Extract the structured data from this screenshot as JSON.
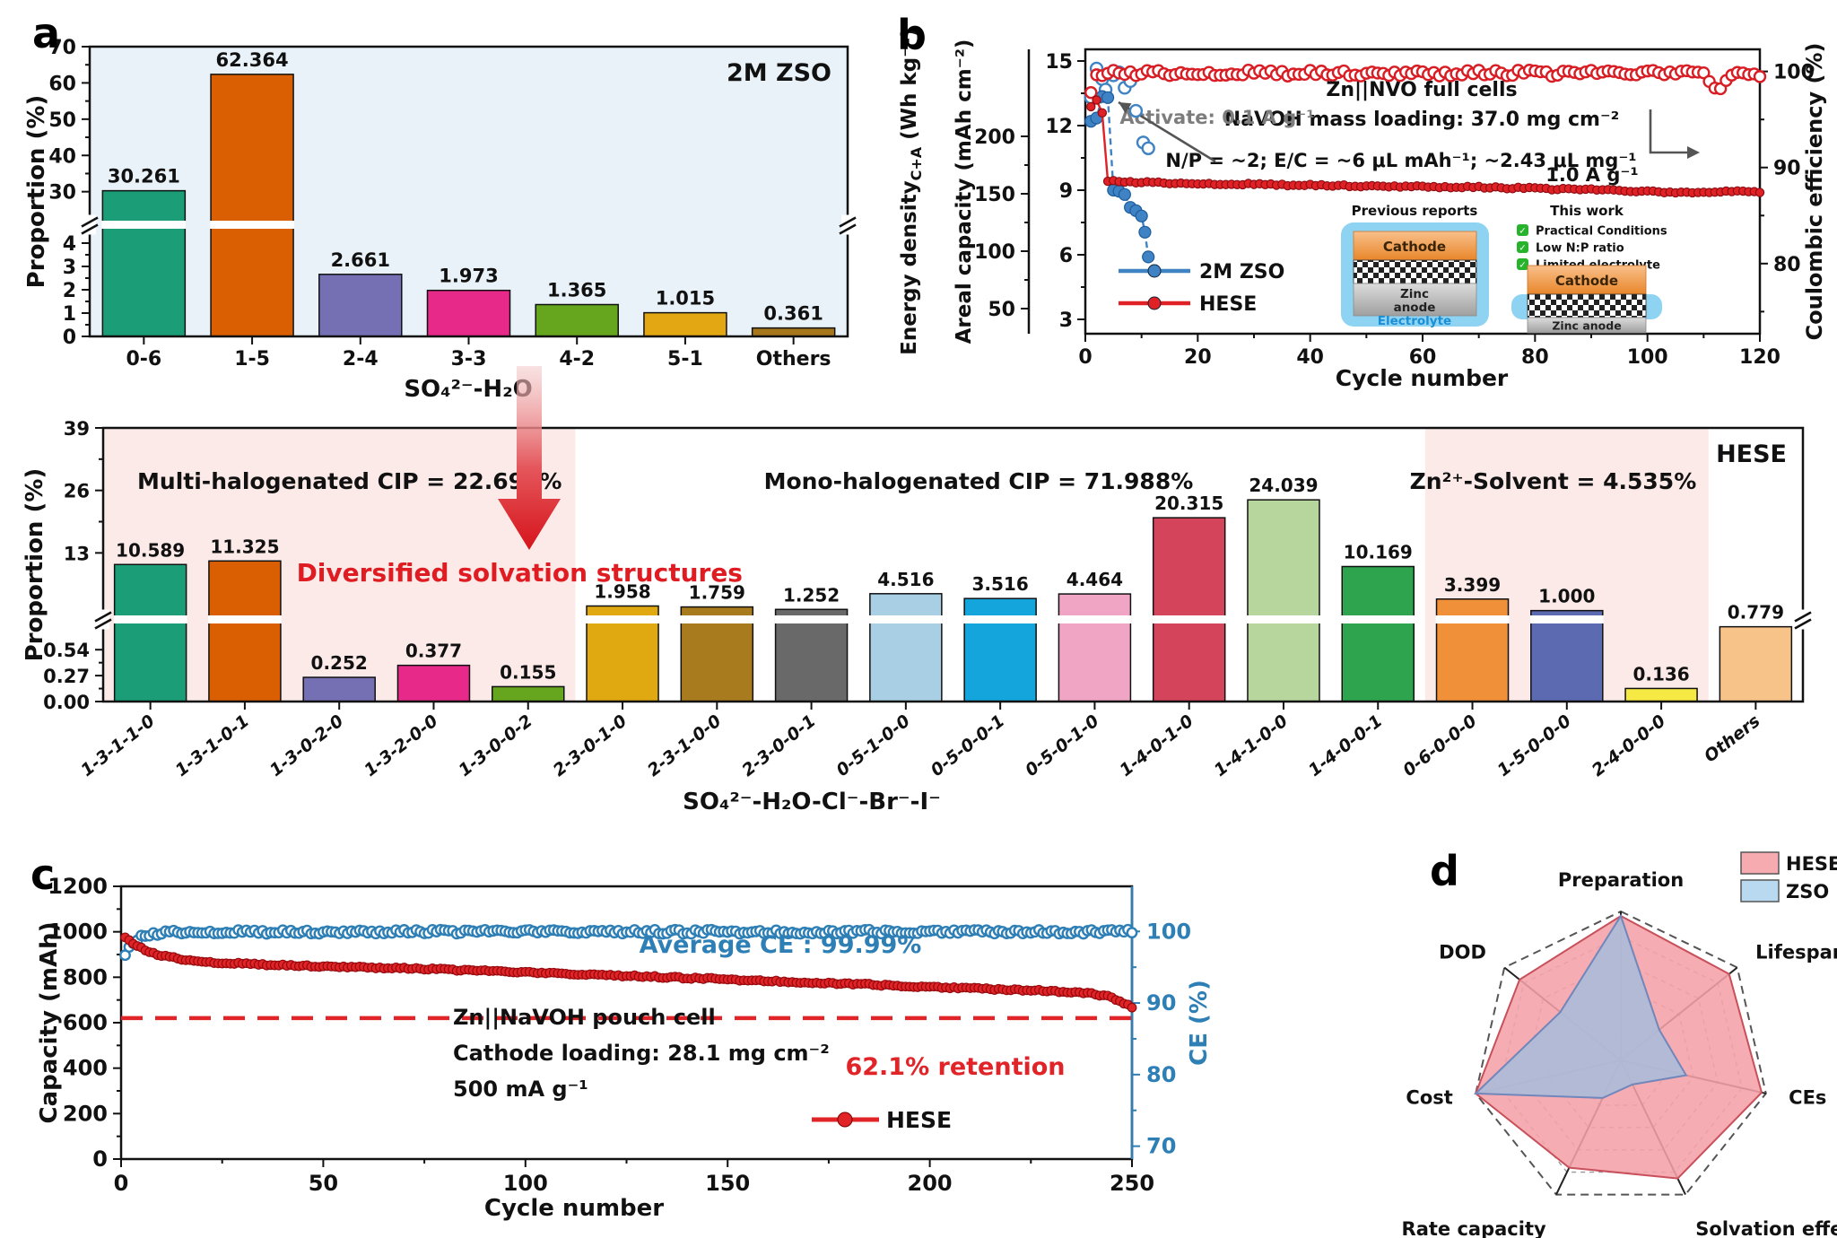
{
  "panel_letters": {
    "a": "a",
    "b": "b",
    "c": "c",
    "d": "d"
  },
  "chart_data": [
    {
      "id": "a",
      "type": "bar",
      "corner_label": "2M ZSO",
      "xlabel": "SO₄²⁻-H₂O",
      "ylabel": "Proportion (%)",
      "plot_bg": "#e8f2f8",
      "categories": [
        "0-6",
        "1-5",
        "2-4",
        "3-3",
        "4-2",
        "5-1",
        "Others"
      ],
      "values": [
        30.261,
        62.364,
        2.661,
        1.973,
        1.365,
        1.015,
        0.361
      ],
      "value_labels": [
        "30.261",
        "62.364",
        "2.661",
        "1.973",
        "1.365",
        "1.015",
        "0.361"
      ],
      "bar_colors": [
        "#1b9e77",
        "#d95f02",
        "#7570b3",
        "#e7298a",
        "#66a61e",
        "#e2a713",
        "#a6761d"
      ],
      "axis": {
        "upper_ticks": [
          30,
          40,
          50,
          60,
          70
        ],
        "upper_range": [
          22,
          70
        ],
        "lower_ticks": [
          0,
          1,
          2,
          3,
          4
        ],
        "broken": true
      }
    },
    {
      "id": "hese",
      "type": "bar",
      "corner_label": "HESE",
      "xlabel": "SO₄²⁻-H₂O-Cl⁻-Br⁻-I⁻",
      "ylabel": "Proportion (%)",
      "plot_bg": "#ffffff",
      "region_color": "#fbeae8",
      "categories": [
        "1-3-1-1-0",
        "1-3-1-0-1",
        "1-3-0-2-0",
        "1-3-2-0-0",
        "1-3-0-0-2",
        "2-3-0-1-0",
        "2-3-1-0-0",
        "2-3-0-0-1",
        "0-5-1-0-0",
        "0-5-0-0-1",
        "0-5-0-1-0",
        "1-4-0-1-0",
        "1-4-1-0-0",
        "1-4-0-0-1",
        "0-6-0-0-0",
        "1-5-0-0-0",
        "2-4-0-0-0",
        "Others"
      ],
      "values": [
        10.589,
        11.325,
        0.252,
        0.377,
        0.155,
        1.958,
        1.759,
        1.252,
        4.516,
        3.516,
        4.464,
        20.315,
        24.039,
        10.169,
        3.399,
        1.0,
        0.136,
        0.779
      ],
      "value_labels": [
        "10.589",
        "11.325",
        "0.252",
        "0.377",
        "0.155",
        "1.958",
        "1.759",
        "1.252",
        "4.516",
        "3.516",
        "4.464",
        "20.315",
        "24.039",
        "10.169",
        "3.399",
        "1.000",
        "0.136",
        "0.779"
      ],
      "bar_colors": [
        "#1b9e77",
        "#d95f02",
        "#7570b3",
        "#e7298a",
        "#66a61e",
        "#e0a912",
        "#a87b1e",
        "#696969",
        "#a9cfe4",
        "#14a5dc",
        "#efa5c3",
        "#d4445a",
        "#b6d69d",
        "#2ea44e",
        "#f0913a",
        "#5c6ab2",
        "#f6e943",
        "#f7c389"
      ],
      "regions": [
        {
          "from": 0,
          "to": 5
        },
        {
          "from": 14,
          "to": 17
        }
      ],
      "annotations": [
        {
          "text": "Multi-halogenated CIP = 22.698%",
          "color": "#111111",
          "x_fr": 0.145,
          "y": 95,
          "size": 25
        },
        {
          "text": "Mono-halogenated CIP = 71.988%",
          "color": "#111111",
          "x_fr": 0.515,
          "y": 95,
          "size": 25
        },
        {
          "text": "Zn²⁺-Solvent = 4.535%",
          "color": "#111111",
          "x_fr": 0.853,
          "y": 95,
          "size": 25
        },
        {
          "text": "Diversified solvation structures",
          "color": "#e01c23",
          "x_fr": 0.245,
          "y": 198,
          "size": 28
        }
      ],
      "axis": {
        "upper_ticks": [
          13,
          26,
          39
        ],
        "upper_range": [
          0,
          39
        ],
        "lower_ticks": [
          0,
          0.27,
          0.54
        ],
        "lower_tick_labels": [
          "0.00",
          "0.27",
          "0.54"
        ],
        "broken": true
      }
    },
    {
      "id": "b",
      "type": "scatter",
      "xlabel": "Cycle number",
      "x_ticks": [
        0,
        20,
        40,
        60,
        80,
        100,
        120
      ],
      "ylabel_energy_parts": [
        "Energy density",
        "C+A",
        " (Wh kg⁻¹)"
      ],
      "ylabel_capacity": "Areal capacity (mAh cm⁻²)",
      "ylabel_ce": "Coulombic efficiency (%)",
      "energy_ticks": [
        50,
        100,
        150,
        200
      ],
      "capacity_ticks": [
        3,
        6,
        9,
        12,
        15
      ],
      "ce_ticks": [
        80,
        90,
        100
      ],
      "texts": {
        "title": "Zn||NVO full cells",
        "loading": "NaVOH mass loading: 37.0 mg cm⁻²",
        "conditions": "N/P = ~2;  E/C = ~6 μL mAh⁻¹; ~2.43 μL mg⁻¹",
        "activate": "Activate: 0.1 A g⁻¹",
        "rate": "1.0 A g⁻¹"
      },
      "legend": [
        {
          "label": "2M ZSO",
          "color": "#3f83c4"
        },
        {
          "label": "HESE",
          "color": "#e02227"
        }
      ],
      "inset": {
        "previous_title": "Previous reports",
        "previous_cathode": "Cathode",
        "previous_anode": "Zinc anode",
        "previous_electrolyte": "Electrolyte",
        "thiswork_title": "This work",
        "thiswork_checks": [
          "Practical Conditions",
          "Low N:P ratio",
          "Limited electrolyte"
        ],
        "thiswork_cathode": "Cathode",
        "thiswork_anode": "Zinc anode"
      },
      "series": [
        {
          "id": "zso-ce",
          "axis": "ce",
          "marker": "open",
          "color": "#3f83c4",
          "r": 6.5,
          "keypoints": [
            [
              1,
              97.3
            ],
            [
              2,
              100.3
            ],
            [
              3,
              99.2
            ],
            [
              3.6,
              98.1
            ],
            [
              5,
              99.6
            ],
            [
              6,
              99.9
            ],
            [
              7,
              98.3
            ],
            [
              8,
              99.0
            ],
            [
              9,
              95.9
            ],
            [
              10.3,
              92.6
            ],
            [
              11.2,
              92.0
            ]
          ]
        },
        {
          "id": "zso-capacity",
          "axis": "cap",
          "marker": "filled",
          "color": "#3f83c4",
          "edge": "#1d5c9c",
          "r": 6.5,
          "line": "dash",
          "keypoints": [
            [
              1,
              12.2
            ],
            [
              2,
              12.35
            ],
            [
              3,
              13.35
            ],
            [
              4,
              13.3
            ],
            [
              5,
              9.0
            ],
            [
              6,
              8.95
            ],
            [
              7,
              8.8
            ],
            [
              8,
              8.2
            ],
            [
              9,
              8.05
            ],
            [
              10,
              7.8
            ],
            [
              10.6,
              7.05
            ],
            [
              11.2,
              5.9
            ]
          ]
        },
        {
          "id": "hese-ce",
          "axis": "ce",
          "marker": "open",
          "color": "#d81e24",
          "r": 6.0,
          "points": 120,
          "x_start": 1,
          "x_end": 120,
          "noise": 0.33,
          "clamp_max": 100.4,
          "keypoints": [
            [
              1,
              97.6
            ],
            [
              2,
              99.4
            ],
            [
              4,
              99.85
            ],
            [
              40,
              99.85
            ],
            [
              80,
              99.8
            ],
            [
              110,
              99.8
            ],
            [
              112.5,
              98.1
            ],
            [
              115,
              99.8
            ],
            [
              120,
              99.5
            ]
          ]
        },
        {
          "id": "hese-capacity",
          "axis": "cap",
          "marker": "filled",
          "color": "#e02227",
          "edge": "#8f0d12",
          "r": 4.6,
          "line": "solid",
          "points": 120,
          "x_start": 1,
          "x_end": 120,
          "noise": 0.045,
          "keypoints": [
            [
              1,
              12.85
            ],
            [
              2,
              13.15
            ],
            [
              3,
              12.6
            ],
            [
              3.6,
              12.55
            ],
            [
              4,
              9.42
            ],
            [
              12,
              9.35
            ],
            [
              30,
              9.27
            ],
            [
              50,
              9.2
            ],
            [
              70,
              9.13
            ],
            [
              90,
              9.02
            ],
            [
              100,
              8.93
            ],
            [
              108,
              8.86
            ],
            [
              114,
              8.97
            ],
            [
              120,
              8.9
            ]
          ]
        }
      ]
    },
    {
      "id": "c",
      "type": "scatter",
      "xlabel": "Cycle number",
      "x_ticks": [
        0,
        50,
        100,
        150,
        200,
        250
      ],
      "ylabel": "Capacity (mAh)",
      "ylabel_ce": "CE (%)",
      "y_ticks": [
        0,
        200,
        400,
        600,
        800,
        1000,
        1200
      ],
      "ce_ticks": [
        70,
        80,
        90,
        100
      ],
      "texts": {
        "cell": "Zn||NaVOH pouch cell",
        "loading": "Cathode loading: 28.1 mg cm⁻²",
        "rate": "500 mA g⁻¹",
        "avg_ce": "Average CE : 99.99%",
        "retention": "62.1% retention"
      },
      "legend": [
        {
          "label": "HESE",
          "color": "#e02428"
        }
      ],
      "retention_line": {
        "value": 620,
        "color": "#e02428"
      },
      "series": [
        {
          "id": "ce",
          "axis": "ce",
          "marker": "open",
          "color": "#2e7fb5",
          "r": 5.2,
          "points": 250,
          "x_start": 1,
          "x_end": 250,
          "noise": 0.3,
          "clamp_max": 100.6,
          "keypoints": [
            [
              1,
              96.5
            ],
            [
              2,
              97.6
            ],
            [
              3,
              98.4
            ],
            [
              5,
              99.2
            ],
            [
              8,
              99.7
            ],
            [
              14,
              99.95
            ],
            [
              250,
              99.95
            ]
          ]
        },
        {
          "id": "capacity",
          "axis": "cap",
          "marker": "filled",
          "color": "#e02428",
          "edge": "#96090d",
          "r": 4.8,
          "line": "solid",
          "points": 250,
          "x_start": 1,
          "x_end": 250,
          "noise": 4,
          "keypoints": [
            [
              1,
              973
            ],
            [
              3,
              948
            ],
            [
              6,
              918
            ],
            [
              10,
              895
            ],
            [
              16,
              877
            ],
            [
              24,
              864
            ],
            [
              40,
              853
            ],
            [
              60,
              844
            ],
            [
              80,
              834
            ],
            [
              100,
              821
            ],
            [
              120,
              809
            ],
            [
              140,
              797
            ],
            [
              160,
              784
            ],
            [
              180,
              771
            ],
            [
              200,
              757
            ],
            [
              215,
              748
            ],
            [
              228,
              741
            ],
            [
              238,
              733
            ],
            [
              244,
              716
            ],
            [
              250,
              668
            ]
          ]
        }
      ]
    },
    {
      "id": "d",
      "type": "radar",
      "axes": [
        "Preparation",
        "Lifespan",
        "CEs",
        "Solvation effects",
        "Rate capacity",
        "Cost",
        "DOD"
      ],
      "rings": 6,
      "scale_max": 1,
      "series": [
        {
          "name": "HESE",
          "values": [
            0.97,
            0.93,
            0.97,
            0.88,
            0.8,
            1.0,
            0.87
          ],
          "fill": "#f4a1a7",
          "stroke": "#c8505a",
          "swatch": "#f6abb1"
        },
        {
          "name": "ZSO",
          "values": [
            0.97,
            0.33,
            0.45,
            0.18,
            0.28,
            1.0,
            0.52
          ],
          "fill": "#a9bcdb",
          "stroke": "#7187bb",
          "swatch": "#b9d9f0"
        }
      ]
    }
  ]
}
